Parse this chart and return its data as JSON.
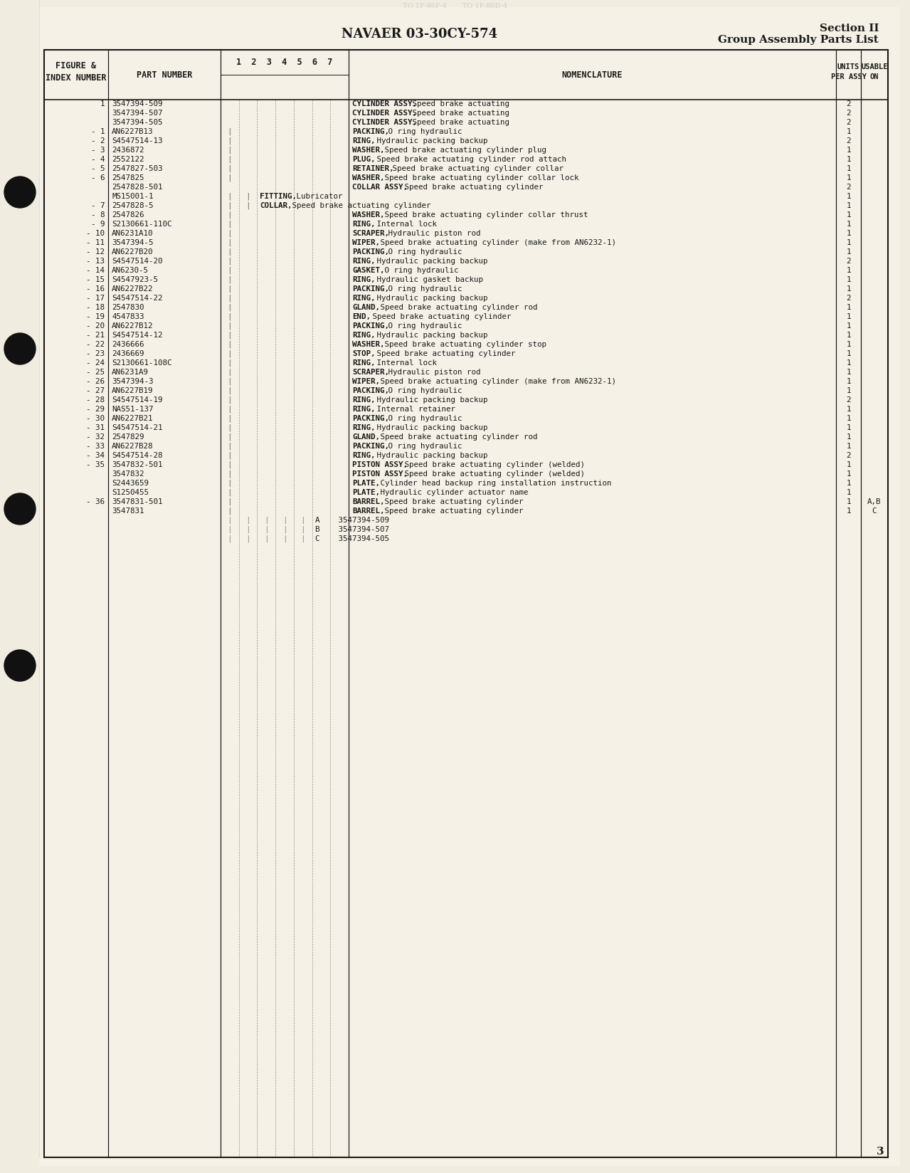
{
  "page_bg": "#f0ece0",
  "paper_bg": "#f5f1e6",
  "title": "NAVAER 03-30CY-574",
  "section_title": "Section II",
  "section_subtitle": "Group Assembly Parts List",
  "page_number": "3",
  "rows": [
    [
      "1",
      "3547394-509",
      0,
      "CYLINDER ASSY, Speed brake actuating",
      "2",
      ""
    ],
    [
      "",
      "3547394-507",
      0,
      "CYLINDER ASSY, Speed brake actuating",
      "2",
      ""
    ],
    [
      "",
      "3547394-505",
      0,
      "CYLINDER ASSY, Speed brake actuating",
      "2",
      ""
    ],
    [
      "- 1",
      "AN6227B13",
      1,
      "PACKING, O ring hydraulic",
      "1",
      ""
    ],
    [
      "- 2",
      "S4547514-13",
      1,
      "RING, Hydraulic packing backup",
      "2",
      ""
    ],
    [
      "- 3",
      "2436872",
      1,
      "WASHER, Speed brake actuating cylinder plug",
      "1",
      ""
    ],
    [
      "- 4",
      "2552122",
      1,
      "PLUG, Speed brake actuating cylinder rod attach",
      "1",
      ""
    ],
    [
      "- 5",
      "2547827-503",
      1,
      "RETAINER, Speed brake actuating cylinder collar",
      "1",
      ""
    ],
    [
      "- 6",
      "2547825",
      1,
      "WASHER, Speed brake actuating cylinder collar lock",
      "1",
      ""
    ],
    [
      "",
      "2547828-501",
      0,
      "COLLAR ASSY, Speed brake actuating cylinder",
      "2",
      ""
    ],
    [
      "",
      "MS15001-1",
      2,
      "FITTING, Lubricator",
      "1",
      ""
    ],
    [
      "- 7",
      "2547828-5",
      2,
      "COLLAR, Speed brake actuating cylinder",
      "1",
      ""
    ],
    [
      "- 8",
      "2547826",
      1,
      "WASHER, Speed brake actuating cylinder collar thrust",
      "1",
      ""
    ],
    [
      "- 9",
      "S2130661-110C",
      1,
      "RING, Internal lock",
      "1",
      ""
    ],
    [
      "- 10",
      "AN6231A10",
      1,
      "SCRAPER, Hydraulic piston rod",
      "1",
      ""
    ],
    [
      "- 11",
      "3547394-5",
      1,
      "WIPER, Speed brake actuating cylinder (make from AN6232-1)",
      "1",
      ""
    ],
    [
      "- 12",
      "AN6227B20",
      1,
      "PACKING, O ring hydraulic",
      "1",
      ""
    ],
    [
      "- 13",
      "S4547514-20",
      1,
      "RING, Hydraulic packing backup",
      "2",
      ""
    ],
    [
      "- 14",
      "AN6230-5",
      1,
      "GASKET, O ring hydraulic",
      "1",
      ""
    ],
    [
      "- 15",
      "S4547923-5",
      1,
      "RING, Hydraulic gasket backup",
      "1",
      ""
    ],
    [
      "- 16",
      "AN6227B22",
      1,
      "PACKING, O ring hydraulic",
      "1",
      ""
    ],
    [
      "- 17",
      "S4547514-22",
      1,
      "RING, Hydraulic packing backup",
      "2",
      ""
    ],
    [
      "- 18",
      "2547830",
      1,
      "GLAND, Speed brake actuating cylinder rod",
      "1",
      ""
    ],
    [
      "- 19",
      "4547833",
      1,
      "END, Speed brake actuating cylinder",
      "1",
      ""
    ],
    [
      "- 20",
      "AN6227B12",
      1,
      "PACKING, O ring hydraulic",
      "1",
      ""
    ],
    [
      "- 21",
      "S4547514-12",
      1,
      "RING, Hydraulic packing backup",
      "1",
      ""
    ],
    [
      "- 22",
      "2436666",
      1,
      "WASHER, Speed brake actuating cylinder stop",
      "1",
      ""
    ],
    [
      "- 23",
      "2436669",
      1,
      "STOP, Speed brake actuating cylinder",
      "1",
      ""
    ],
    [
      "- 24",
      "S2130661-108C",
      1,
      "RING, Internal lock",
      "1",
      ""
    ],
    [
      "- 25",
      "AN6231A9",
      1,
      "SCRAPER, Hydraulic piston rod",
      "1",
      ""
    ],
    [
      "- 26",
      "3547394-3",
      1,
      "WIPER, Speed brake actuating cylinder (make from AN6232-1)",
      "1",
      ""
    ],
    [
      "- 27",
      "AN6227B19",
      1,
      "PACKING, O ring hydraulic",
      "1",
      ""
    ],
    [
      "- 28",
      "S4547514-19",
      1,
      "RING, Hydraulic packing backup",
      "2",
      ""
    ],
    [
      "- 29",
      "NAS51-137",
      1,
      "RING, Internal retainer",
      "1",
      ""
    ],
    [
      "- 30",
      "AN6227B21",
      1,
      "PACKING, O ring hydraulic",
      "1",
      ""
    ],
    [
      "- 31",
      "S4547514-21",
      1,
      "RING, Hydraulic packing backup",
      "1",
      ""
    ],
    [
      "- 32",
      "2547829",
      1,
      "GLAND, Speed brake actuating cylinder rod",
      "1",
      ""
    ],
    [
      "- 33",
      "AN6227B28",
      1,
      "PACKING, O ring hydraulic",
      "1",
      ""
    ],
    [
      "- 34",
      "S4547514-28",
      1,
      "RING, Hydraulic packing backup",
      "2",
      ""
    ],
    [
      "- 35",
      "3547832-501",
      1,
      "PISTON ASSY, Speed brake actuating cylinder (welded)",
      "1",
      ""
    ],
    [
      "",
      "3547832",
      1,
      "PISTON ASSY, Speed brake actuating cylinder (welded)",
      "1",
      ""
    ],
    [
      "",
      "S2443659",
      1,
      "PLATE, Cylinder head backup ring installation instruction",
      "1",
      ""
    ],
    [
      "",
      "S1250455",
      1,
      "PLATE, Hydraulic cylinder actuator name",
      "1",
      ""
    ],
    [
      "- 36",
      "3547831-501",
      1,
      "BARREL, Speed brake actuating cylinder",
      "1",
      "A,B"
    ],
    [
      "",
      "3547831",
      1,
      "BARREL, Speed brake actuating cylinder",
      "1",
      "C"
    ],
    [
      "",
      "",
      4,
      "A    3547394-509",
      "",
      ""
    ],
    [
      "",
      "",
      4,
      "B    3547394-507",
      "",
      ""
    ],
    [
      "",
      "",
      4,
      "C    3547394-505",
      "",
      ""
    ]
  ]
}
